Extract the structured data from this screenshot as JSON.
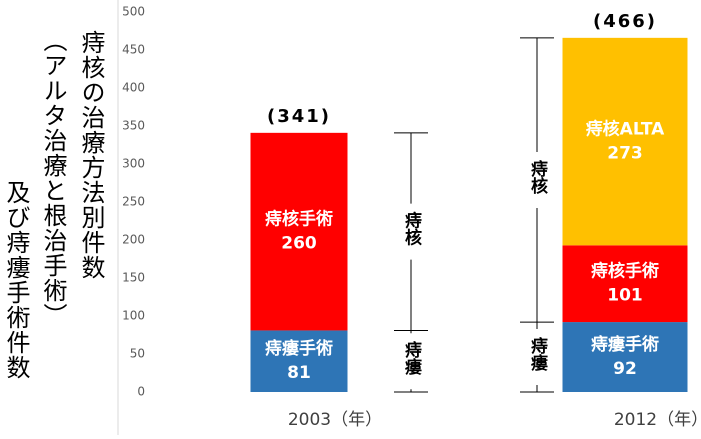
{
  "chart_data": {
    "type": "bar",
    "stacked": true,
    "y_label_lines": [
      "痔核の治療方法別件数",
      "（アルタ治療と根治手術）",
      "及び痔瘻手術件数"
    ],
    "categories": [
      "2003（年）",
      "2012（年）"
    ],
    "series": [
      {
        "name": "痔瘻手術",
        "color": "#2e75b6",
        "values": [
          81,
          92
        ]
      },
      {
        "name": "痔核手術",
        "color": "#ff0000",
        "values": [
          260,
          101
        ]
      },
      {
        "name": "痔核ALTA",
        "color": "#ffc000",
        "values": [
          null,
          273
        ]
      }
    ],
    "totals": {
      "values": [
        341,
        466
      ],
      "value_labels": [
        "(341)",
        "(466)"
      ]
    },
    "annotations": [
      "痔核",
      "痔瘻"
    ],
    "ylim": [
      0,
      500
    ],
    "yticks": [
      0,
      50,
      100,
      150,
      200,
      250,
      300,
      350,
      400,
      450,
      500
    ]
  }
}
